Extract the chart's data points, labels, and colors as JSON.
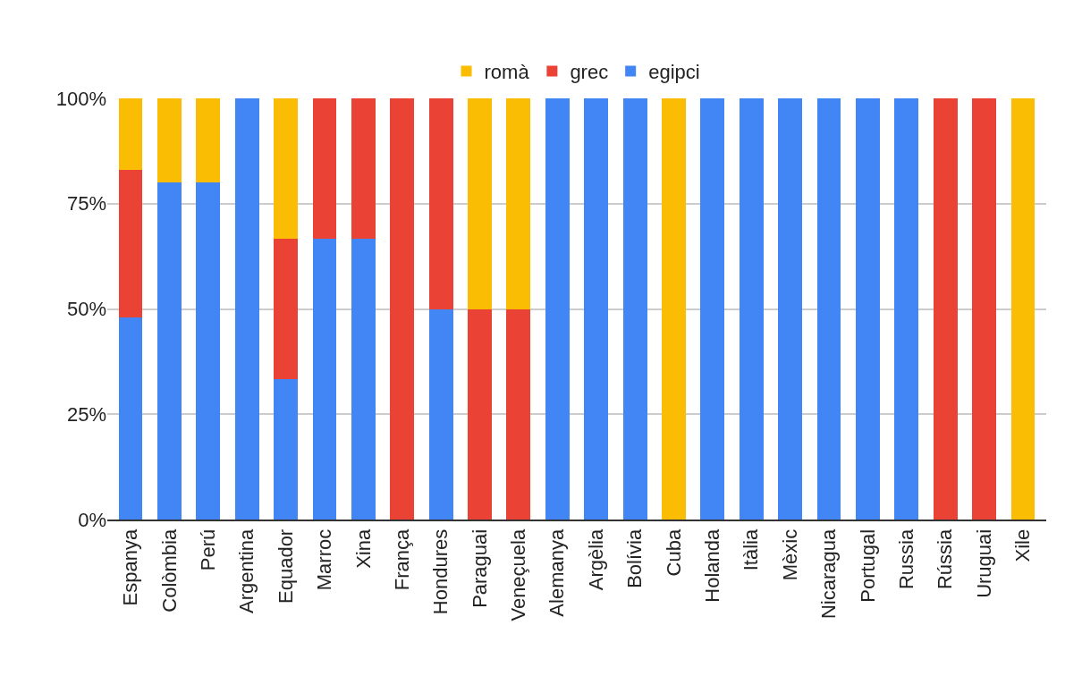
{
  "chart_data": {
    "type": "bar",
    "stacked": true,
    "categories": [
      "Espanya",
      "Colòmbia",
      "Perú",
      "Argentina",
      "Equador",
      "Marroc",
      "Xina",
      "França",
      "Hondures",
      "Paraguai",
      "Veneçuela",
      "Alemanya",
      "Argèlia",
      "Bolívia",
      "Cuba",
      "Holanda",
      "Itàlia",
      "Mèxic",
      "Nicaragua",
      "Portugal",
      "Russia",
      "Rússia",
      "Uruguai",
      "Xile"
    ],
    "series": [
      {
        "name": "egipci",
        "color": "#4285f4",
        "values": [
          48,
          80,
          80,
          100,
          33.3,
          66.7,
          66.7,
          0,
          50,
          0,
          0,
          100,
          100,
          100,
          0,
          100,
          100,
          100,
          100,
          100,
          100,
          0,
          0,
          0
        ]
      },
      {
        "name": "grec",
        "color": "#ea4335",
        "values": [
          35,
          0,
          0,
          0,
          33.3,
          33.3,
          33.3,
          100,
          50,
          50,
          50,
          0,
          0,
          0,
          0,
          0,
          0,
          0,
          0,
          0,
          0,
          100,
          100,
          0
        ]
      },
      {
        "name": "romà",
        "color": "#fbbc04",
        "values": [
          17,
          20,
          20,
          0,
          33.4,
          0,
          0,
          0,
          0,
          50,
          50,
          0,
          0,
          0,
          100,
          0,
          0,
          0,
          0,
          0,
          0,
          0,
          0,
          100
        ]
      }
    ],
    "ylim": [
      0,
      100
    ],
    "yticks": [
      {
        "value": 0,
        "label": "0%"
      },
      {
        "value": 25,
        "label": "25%"
      },
      {
        "value": 50,
        "label": "50%"
      },
      {
        "value": 75,
        "label": "75%"
      },
      {
        "value": 100,
        "label": "100%"
      }
    ],
    "grid": "y",
    "legend": "top"
  }
}
